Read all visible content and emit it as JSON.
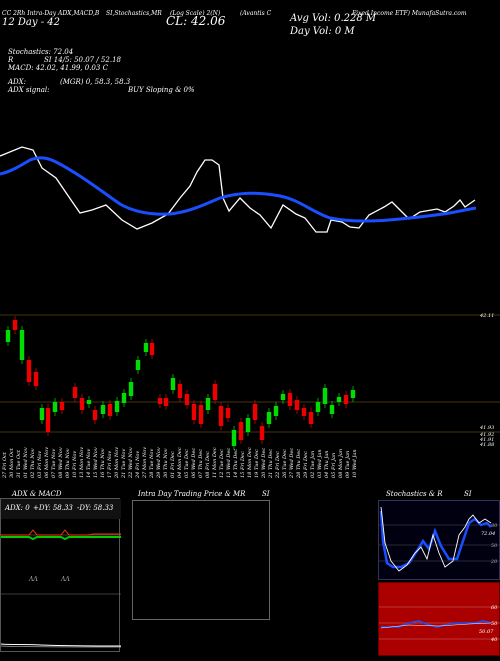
{
  "header": {
    "line1_left": "CC 2Rh Intra-Day ADX,MACD,B",
    "line1_mid": "SI,Stochastics,MR",
    "line1_scale": "(Log Scale) 2(N)",
    "line1_ticker": "(Avantis C",
    "line1_right": "Fixed Income  ETF) MunafaSutra.com",
    "line2_left": "12 Day - 42",
    "close_label": "CL: 42.06",
    "avg_vol": "Avg Vol: 0.228  M",
    "day_vol": "Day Vol: 0   M"
  },
  "indicators": {
    "stoch": "Stochastics: 72.04",
    "rsi": "SI 14/5: 50.07 / 52.18",
    "rsi_prefix": "R",
    "macd": "MACD: 42.02, 41.99, 0.03 C",
    "adx": "ADX:",
    "adx_mgr": "(MGR) 0, 58.3, 58.3",
    "adx_signal": "ADX  signal:",
    "signal": "BUY Sloping & 0%"
  },
  "price_axis": {
    "top_label": "42.11",
    "low_labels": [
      "41.93",
      "41.92",
      "41.91",
      "41.88"
    ]
  },
  "date_labels": [
    "27 Fri Oct",
    "30 Mon Oct",
    "31 Tue Oct",
    "01 Wed Nov",
    "02 Thu Nov",
    "03 Fri Nov",
    "06 Mon Nov",
    "07 Tue Nov",
    "08 Wed Nov",
    "09 Thu Nov",
    "10 Fri Nov",
    "13 Mon Nov",
    "14 Tue Nov",
    "15 Wed Nov",
    "16 Thu Nov",
    "17 Fri Nov",
    "20 Mon Nov",
    "21 Tue Nov",
    "22 Wed Nov",
    "24 Fri Nov",
    "27 Mon Nov",
    "28 Tue Nov",
    "29 Wed Nov",
    "30 Thu Nov",
    "01 Fri Dec",
    "04 Mon Dec",
    "05 Tue Dec",
    "06 Wed Dec",
    "07 Thu Dec",
    "08 Fri Dec",
    "11 Mon Dec",
    "12 Tue Dec",
    "13 Wed Dec",
    "14 Thu Dec",
    "15 Fri Dec",
    "18 Mon Dec",
    "19 Tue Dec",
    "20 Wed Dec",
    "21 Thu Dec",
    "22 Fri Dec",
    "26 Tue Dec",
    "27 Wed Dec",
    "28 Thu Dec",
    "29 Fri Dec",
    "02 Tue Jan",
    "03 Wed Jan",
    "04 Thu Jan",
    "05 Fri Jan",
    "08 Mon Jan",
    "09 Tue Jan",
    "10 Wed Jan",
    "11 Thu Jan",
    "12 Fri Jan"
  ],
  "panels": {
    "adx": {
      "title": "ADX  & MACD",
      "readout_adx": "ADX: 0",
      "readout_dip": "+DY: 58.33",
      "readout_dim": "-DY: 58.33",
      "marker_1": "ΛΛ",
      "marker_2": "ΛΛ"
    },
    "mrsi": {
      "title_left": "Intra  Day Trading Price  & MR",
      "title_right": "SI"
    },
    "stoch": {
      "title_left": "Stochastics & R",
      "title_right": "SI",
      "levels": [
        "80",
        "50",
        "20"
      ],
      "value_label": "72.04",
      "rsi_levels": [
        "60",
        "50",
        "40"
      ],
      "rsi_value": "50.07"
    }
  },
  "colors": {
    "background": "#000000",
    "sma": "#1a4fff",
    "price_line": "#ffffff",
    "up_candle": "#00dd00",
    "down_candle": "#ee0000",
    "grid_brown": "#8a6a1a",
    "adx_line": "#00cc00",
    "adx_red": "#ff3300",
    "rsi_panel_bg": "#aa0000"
  }
}
